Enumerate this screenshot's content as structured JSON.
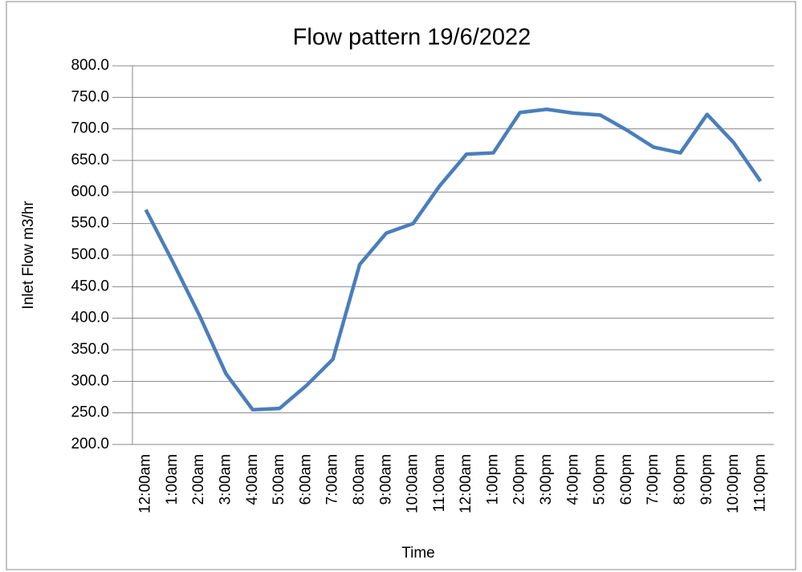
{
  "chart_data": {
    "type": "line",
    "title": "Flow pattern 19/6/2022",
    "x_label": "Time",
    "y_label": "Inlet Flow m3/hr",
    "categories": [
      "12:00am",
      "1:00am",
      "2:00am",
      "3:00am",
      "4:00am",
      "5:00am",
      "6:00am",
      "7:00am",
      "8:00am",
      "9:00am",
      "10:00am",
      "11:00am",
      "12:00am",
      "1:00pm",
      "2:00pm",
      "3:00pm",
      "4:00pm",
      "5:00pm",
      "6:00pm",
      "7:00pm",
      "8:00pm",
      "9:00pm",
      "10:00pm",
      "11:00pm"
    ],
    "series": [
      {
        "name": "Inlet Flow",
        "color": "#4a7ebb",
        "values": [
          572,
          490,
          405,
          312,
          255,
          257,
          293,
          335,
          485,
          535,
          550,
          610,
          660,
          662,
          726,
          731,
          725,
          722,
          698,
          671,
          662,
          723,
          678,
          617
        ]
      }
    ],
    "ylim": [
      200,
      800
    ],
    "yticks": [
      {
        "value": 200,
        "label": "200.0"
      },
      {
        "value": 250,
        "label": "250.0"
      },
      {
        "value": 300,
        "label": "300.0"
      },
      {
        "value": 350,
        "label": "350.0"
      },
      {
        "value": 400,
        "label": "400.0"
      },
      {
        "value": 450,
        "label": "450.0"
      },
      {
        "value": 500,
        "label": "500.0"
      },
      {
        "value": 550,
        "label": "550.0"
      },
      {
        "value": 600,
        "label": "600.0"
      },
      {
        "value": 650,
        "label": "650.0"
      },
      {
        "value": 700,
        "label": "700.0"
      },
      {
        "value": 750,
        "label": "750.0"
      },
      {
        "value": 800,
        "label": "800.0"
      }
    ],
    "grid": true
  }
}
